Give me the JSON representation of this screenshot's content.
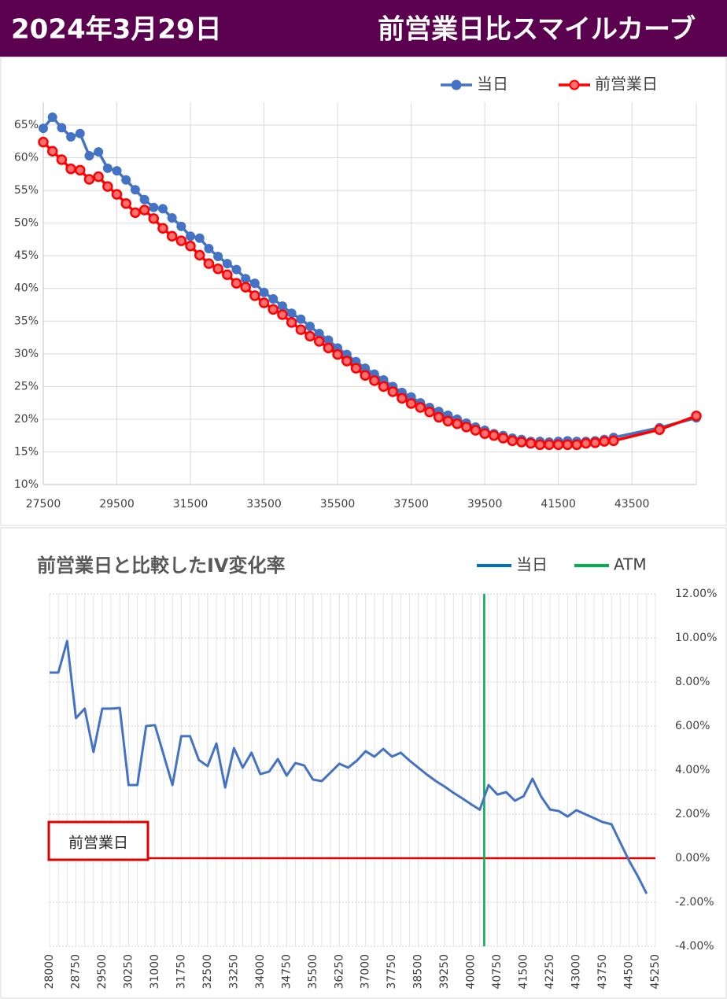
{
  "header": {
    "date": "2024年3月29日",
    "title": "前営業日比スマイルカーブ"
  },
  "chart_data": [
    {
      "type": "line",
      "x": [
        27500,
        27750,
        28000,
        28250,
        28500,
        28750,
        29000,
        29250,
        29500,
        29750,
        30000,
        30250,
        30500,
        30750,
        31000,
        31250,
        31500,
        31750,
        32000,
        32250,
        32500,
        32750,
        33000,
        33250,
        33500,
        33750,
        34000,
        34250,
        34500,
        34750,
        35000,
        35250,
        35500,
        35750,
        36000,
        36250,
        36500,
        36750,
        37000,
        37250,
        37500,
        37750,
        38000,
        38250,
        38500,
        38750,
        39000,
        39250,
        39500,
        39750,
        40000,
        40250,
        40500,
        40750,
        41000,
        41250,
        41500,
        41750,
        42000,
        42250,
        42500,
        42750,
        43000,
        44250,
        45250
      ],
      "series": [
        {
          "name": "当日",
          "color": "#4472c4",
          "values": [
            64.5,
            66.2,
            64.6,
            63.2,
            63.7,
            60.3,
            60.9,
            58.4,
            58.0,
            56.6,
            55.1,
            53.6,
            52.4,
            52.2,
            50.8,
            49.5,
            48.0,
            47.7,
            46.1,
            44.9,
            43.8,
            42.9,
            41.5,
            40.8,
            39.4,
            38.4,
            37.3,
            36.2,
            35.3,
            34.2,
            33.1,
            32.1,
            30.9,
            29.9,
            28.8,
            27.8,
            26.9,
            26.0,
            25.0,
            24.1,
            23.4,
            22.5,
            21.8,
            21.2,
            20.6,
            20.0,
            19.4,
            18.8,
            18.3,
            17.8,
            17.5,
            17.1,
            16.9,
            16.6,
            16.6,
            16.5,
            16.6,
            16.7,
            16.6,
            16.6,
            16.7,
            16.9,
            17.2,
            18.7,
            20.2
          ]
        },
        {
          "name": "前営業日",
          "color": "#ff0000",
          "values": [
            62.4,
            61.0,
            59.7,
            58.3,
            58.1,
            56.7,
            57.1,
            55.6,
            54.4,
            53.0,
            51.6,
            52.0,
            50.7,
            49.2,
            48.0,
            47.3,
            46.5,
            45.1,
            43.8,
            43.0,
            42.1,
            40.8,
            40.2,
            38.9,
            37.8,
            36.8,
            36.0,
            34.8,
            33.7,
            32.7,
            31.9,
            30.9,
            29.9,
            28.9,
            27.8,
            26.7,
            25.9,
            25.0,
            24.2,
            23.2,
            22.4,
            21.8,
            21.1,
            20.3,
            19.7,
            19.3,
            18.8,
            18.3,
            17.8,
            17.5,
            17.1,
            16.7,
            16.5,
            16.3,
            16.1,
            16.1,
            16.1,
            16.1,
            16.1,
            16.3,
            16.4,
            16.6,
            16.7,
            18.4,
            20.5
          ]
        }
      ],
      "xlim": [
        27500,
        45250
      ],
      "xticks": [
        27500,
        29500,
        31500,
        33500,
        35500,
        37500,
        39500,
        41500,
        43500
      ],
      "ylim": [
        10,
        65
      ],
      "yticks": [
        {
          "value": 10,
          "label": "10%"
        },
        {
          "value": 15,
          "label": "15%"
        },
        {
          "value": 20,
          "label": "20%"
        },
        {
          "value": 25,
          "label": "25%"
        },
        {
          "value": 30,
          "label": "30%"
        },
        {
          "value": 35,
          "label": "35%"
        },
        {
          "value": 40,
          "label": "40%"
        },
        {
          "value": 45,
          "label": "45%"
        },
        {
          "value": 50,
          "label": "50%"
        },
        {
          "value": 55,
          "label": "55%"
        },
        {
          "value": 60,
          "label": "60%"
        },
        {
          "value": 65,
          "label": "65%"
        }
      ],
      "grid": true,
      "legend": "top-right"
    },
    {
      "type": "line",
      "title": "前営業日と比較したIV変化率",
      "x": [
        28000,
        28250,
        28500,
        28750,
        29000,
        29250,
        29500,
        29750,
        30000,
        30250,
        30500,
        30750,
        31000,
        31250,
        31500,
        31750,
        32000,
        32250,
        32500,
        32750,
        33000,
        33250,
        33500,
        33750,
        34000,
        34250,
        34500,
        34750,
        35000,
        35250,
        35500,
        35750,
        36000,
        36250,
        36500,
        36750,
        37000,
        37250,
        37500,
        37750,
        38000,
        38250,
        38500,
        38750,
        39000,
        39250,
        39500,
        39750,
        40000,
        40250,
        40500,
        40750,
        41000,
        41250,
        41500,
        41750,
        42000,
        42250,
        42500,
        42750,
        43000,
        43250,
        43500,
        43750,
        44000,
        44250,
        44500,
        44750,
        45000
      ],
      "series": [
        {
          "name": "当日",
          "color": "#4472c4",
          "legend_color": "#0070c0",
          "values": [
            8.43,
            8.43,
            9.86,
            6.36,
            6.79,
            4.82,
            6.79,
            6.79,
            6.82,
            3.32,
            3.32,
            6.0,
            6.04,
            4.68,
            3.32,
            5.54,
            5.54,
            4.46,
            4.18,
            5.21,
            3.21,
            5.0,
            4.11,
            4.79,
            3.82,
            3.93,
            4.5,
            3.75,
            4.32,
            4.21,
            3.57,
            3.5,
            3.89,
            4.29,
            4.11,
            4.43,
            4.86,
            4.61,
            4.96,
            4.61,
            4.79,
            4.43,
            4.11,
            3.79,
            3.5,
            3.25,
            2.97,
            2.72,
            2.45,
            2.2,
            3.32,
            2.89,
            3.0,
            2.61,
            2.82,
            3.61,
            2.79,
            2.21,
            2.14,
            1.89,
            2.18,
            2.0,
            1.82,
            1.64,
            1.54,
            0.71,
            -0.11,
            -0.82,
            -1.61
          ]
        }
      ],
      "atm": {
        "name": "ATM",
        "color": "#00b050",
        "x": 40375
      },
      "reference": {
        "label": "前営業日",
        "color": "#e00000",
        "value": 0
      },
      "xlim": [
        28000,
        45250
      ],
      "xticks": [
        28000,
        28750,
        29500,
        30250,
        31000,
        31750,
        32500,
        33250,
        34000,
        34750,
        35500,
        36250,
        37000,
        37750,
        38500,
        39250,
        40000,
        40750,
        41500,
        42250,
        43000,
        43750,
        44500,
        45250
      ],
      "ylim": [
        -4,
        12
      ],
      "yticks": [
        {
          "value": -4,
          "label": "-4.00%"
        },
        {
          "value": -2,
          "label": "-2.00%"
        },
        {
          "value": 0,
          "label": "0.00%"
        },
        {
          "value": 2,
          "label": "2.00%"
        },
        {
          "value": 4,
          "label": "4.00%"
        },
        {
          "value": 6,
          "label": "6.00%"
        },
        {
          "value": 8,
          "label": "8.00%"
        },
        {
          "value": 10,
          "label": "10.00%"
        },
        {
          "value": 12,
          "label": "12.00%"
        }
      ],
      "y_axis_side": "right",
      "grid": true,
      "legend": "top-right"
    }
  ]
}
